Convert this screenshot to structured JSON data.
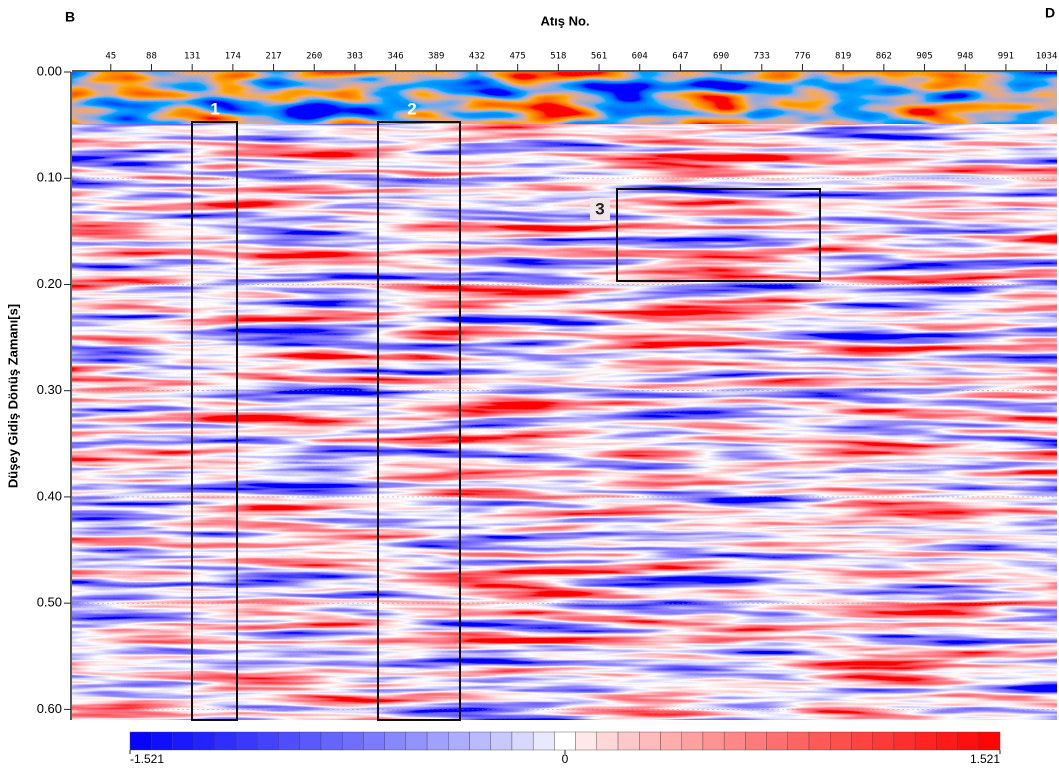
{
  "chart_data": {
    "type": "seismic",
    "title": "Atış No.",
    "ylabel": "Düşey Gidiş Dönüş Zamanı[s]",
    "corner_labels": [
      "B",
      "D"
    ],
    "xlim": [
      4,
      1045
    ],
    "xticks": [
      45,
      88,
      131,
      174,
      217,
      260,
      303,
      346,
      389,
      432,
      475,
      518,
      561,
      604,
      647,
      690,
      733,
      776,
      819,
      862,
      905,
      948,
      991,
      1034
    ],
    "ylim": [
      0,
      0.61
    ],
    "yticks": [
      {
        "value": 0,
        "label": "0.00"
      },
      {
        "value": 0.1,
        "label": "0.10"
      },
      {
        "value": 0.2,
        "label": "0.20"
      },
      {
        "value": 0.3,
        "label": "0.30"
      },
      {
        "value": 0.4,
        "label": "0.40"
      },
      {
        "value": 0.5,
        "label": "0.50"
      },
      {
        "value": 0.6,
        "label": "0.60"
      }
    ],
    "grid": true,
    "colorbar": {
      "clim": [
        -1.521,
        1.521
      ],
      "ticks": [
        -1.521,
        0,
        1.521
      ],
      "low_color": "#0000ff",
      "mid_color": "#ffffff",
      "high_color": "#ff0000"
    },
    "annotations": [
      "1",
      "2",
      "3"
    ]
  }
}
